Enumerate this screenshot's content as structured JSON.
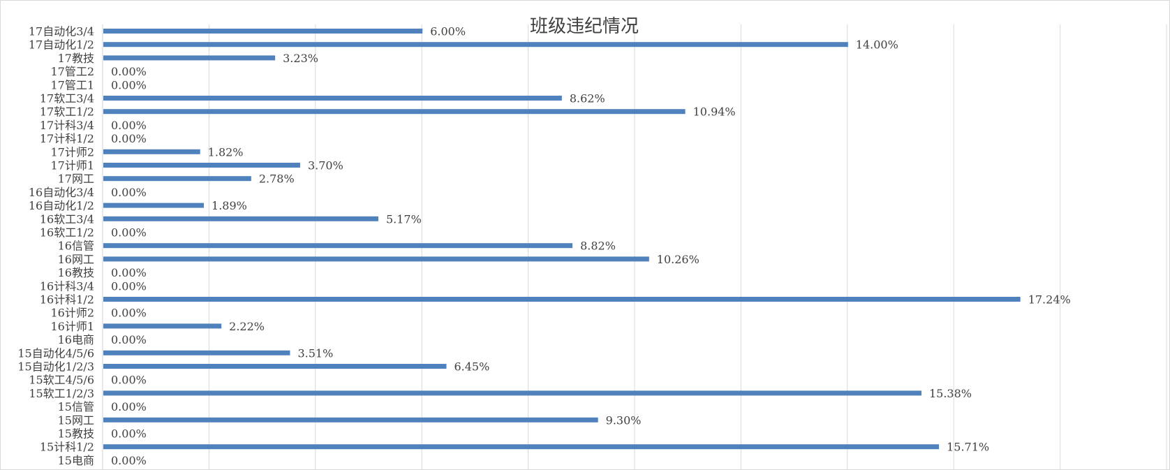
{
  "chart_data": {
    "type": "bar",
    "orientation": "horizontal",
    "title": "班级违纪情况",
    "categories": [
      "17自动化3/4",
      "17自动化1/2",
      "17教技",
      "17管工2",
      "17管工1",
      "17软工3/4",
      "17软工1/2",
      "17计科3/4",
      "17计科1/2",
      "17计师2",
      "17计师1",
      "17网工",
      "16自动化3/4",
      "16自动化1/2",
      "16软工3/4",
      "16软工1/2",
      "16信管",
      "16网工",
      "16教技",
      "16计科3/4",
      "16计科1/2",
      "16计师2",
      "16计师1",
      "16电商",
      "15自动化4/5/6",
      "15自动化1/2/3",
      "15软工4/5/6",
      "15软工1/2/3",
      "15信管",
      "15网工",
      "15教技",
      "15计科1/2",
      "15电商"
    ],
    "values": [
      6.0,
      14.0,
      3.23,
      0.0,
      0.0,
      8.62,
      10.94,
      0.0,
      0.0,
      1.82,
      3.7,
      2.78,
      0.0,
      1.89,
      5.17,
      0.0,
      8.82,
      10.26,
      0.0,
      0.0,
      17.24,
      0.0,
      2.22,
      0.0,
      3.51,
      6.45,
      0.0,
      15.38,
      0.0,
      9.3,
      0.0,
      15.71,
      0.0
    ],
    "data_labels": [
      "6.00%",
      "14.00%",
      "3.23%",
      "0.00%",
      "0.00%",
      "8.62%",
      "10.94%",
      "0.00%",
      "0.00%",
      "1.82%",
      "3.70%",
      "2.78%",
      "0.00%",
      "1.89%",
      "5.17%",
      "0.00%",
      "8.82%",
      "10.26%",
      "0.00%",
      "0.00%",
      "17.24%",
      "0.00%",
      "2.22%",
      "0.00%",
      "3.51%",
      "6.45%",
      "0.00%",
      "15.38%",
      "0.00%",
      "9.30%",
      "0.00%",
      "15.71%",
      "0.00%"
    ],
    "xlim": [
      0,
      20
    ],
    "x_gridline_step": 2,
    "grid": true,
    "bar_color": "#4f81bd",
    "grid_color": "#d9d9d9"
  }
}
